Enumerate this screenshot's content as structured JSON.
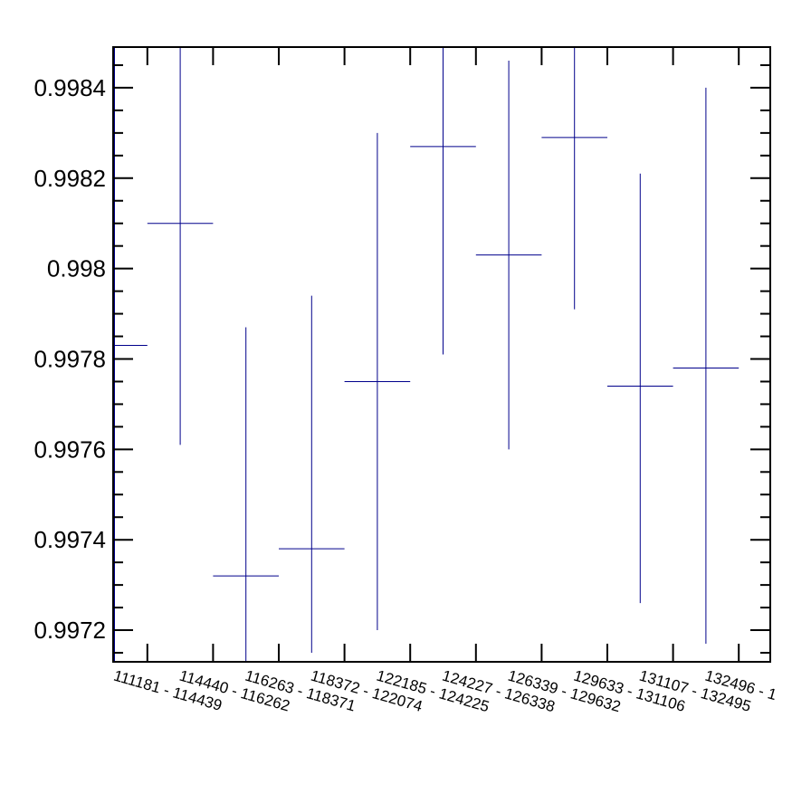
{
  "chart_data": {
    "type": "scatter",
    "title": "",
    "xlabel": "",
    "ylabel": "",
    "categories": [
      "111181 - 114439",
      "114440 - 116262",
      "116263 - 118371",
      "118372 - 122074",
      "122185 - 124225",
      "124227 - 126338",
      "126339 - 129632",
      "129633 - 131106",
      "131107 - 132495",
      "132496 - 1"
    ],
    "series": [
      {
        "values": [
          0.99783,
          0.9981,
          0.99732,
          0.99738,
          0.99775,
          0.99827,
          0.99803,
          0.99829,
          0.99774,
          0.99778
        ],
        "err_low": [
          0.99713,
          0.99761,
          0.99713,
          0.99715,
          0.9972,
          0.99781,
          0.9976,
          0.99791,
          0.99726,
          0.99717
        ],
        "err_high": [
          0.99849,
          0.99849,
          0.99787,
          0.99794,
          0.9983,
          0.99849,
          0.99846,
          0.99849,
          0.99821,
          0.9984
        ]
      }
    ],
    "ylim": [
      0.99713,
      0.99849
    ],
    "yticks": [
      0.9972,
      0.9974,
      0.9976,
      0.9978,
      0.998,
      0.9982,
      0.9984
    ],
    "ytick_labels": [
      "0.9972",
      "0.9974",
      "0.9976",
      "0.9978",
      "0.998",
      "0.9982",
      "0.9984"
    ],
    "grid": false,
    "legend": "none",
    "colors": {
      "series": "#00008b",
      "axis": "#000000"
    }
  }
}
